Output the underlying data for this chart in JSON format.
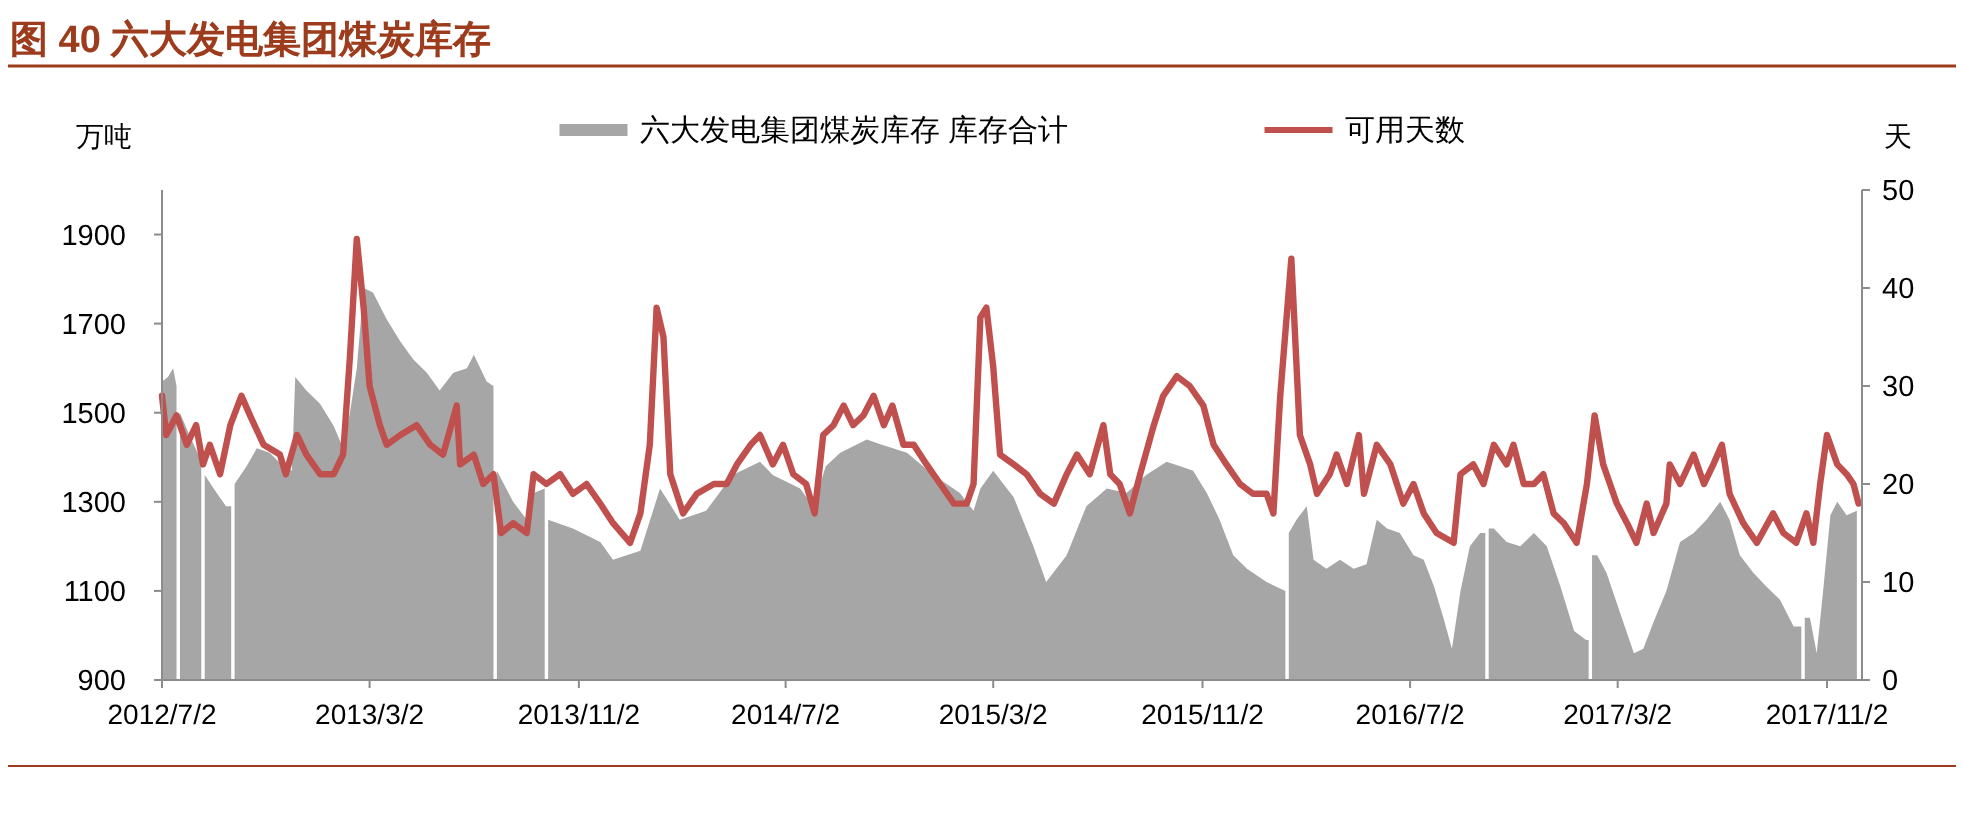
{
  "chart_data": {
    "type": "area",
    "title": "图 40 六大发电集团煤炭库存",
    "ylabel": "万吨",
    "y2label": "天",
    "legend": "top",
    "xlim": [
      "2012-07-02",
      "2017-12-13"
    ],
    "xticks": [
      {
        "value": "2012-07-02",
        "label": "2012/7/2"
      },
      {
        "value": "2013-03-02",
        "label": "2013/3/2"
      },
      {
        "value": "2013-11-02",
        "label": "2013/11/2"
      },
      {
        "value": "2014-07-02",
        "label": "2014/7/2"
      },
      {
        "value": "2015-03-02",
        "label": "2015/3/2"
      },
      {
        "value": "2015-11-02",
        "label": "2015/11/2"
      },
      {
        "value": "2016-07-02",
        "label": "2016/7/2"
      },
      {
        "value": "2017-03-02",
        "label": "2017/3/2"
      },
      {
        "value": "2017-11-02",
        "label": "2017/11/2"
      }
    ],
    "ylim": [
      900,
      2000
    ],
    "yticks": [
      900,
      1100,
      1300,
      1500,
      1700,
      1900
    ],
    "y2lim": [
      0,
      50
    ],
    "y2ticks": [
      0,
      10,
      20,
      30,
      40,
      50
    ],
    "series": [
      {
        "name": "六大发电集团煤炭库存 库存合计",
        "type": "area",
        "color": "#a6a6a6",
        "x": [
          "2012-07-02",
          "2012-07-09",
          "2012-07-15",
          "2012-07-19",
          "2012-07-21",
          "2012-07-23",
          "2012-08-03",
          "2012-08-15",
          "2012-08-17",
          "2012-08-19",
          "2012-08-21",
          "2012-09-04",
          "2012-09-15",
          "2012-09-21",
          "2012-09-23",
          "2012-09-25",
          "2012-10-09",
          "2012-10-21",
          "2012-11-05",
          "2012-11-21",
          "2012-12-01",
          "2012-12-05",
          "2012-12-18",
          "2013-01-03",
          "2013-01-19",
          "2013-01-30",
          "2013-02-07",
          "2013-02-15",
          "2013-02-23",
          "2013-03-06",
          "2013-03-22",
          "2013-04-07",
          "2013-04-22",
          "2013-05-08",
          "2013-05-23",
          "2013-06-08",
          "2013-06-24",
          "2013-07-02",
          "2013-07-17",
          "2013-07-25",
          "2013-07-27",
          "2013-07-29",
          "2013-08-17",
          "2013-09-02",
          "2013-09-10",
          "2013-09-23",
          "2013-09-25",
          "2013-09-27",
          "2013-10-26",
          "2013-11-27",
          "2013-12-12",
          "2013-12-28",
          "2014-01-13",
          "2014-02-05",
          "2014-02-28",
          "2014-03-31",
          "2014-05-01",
          "2014-06-02",
          "2014-06-17",
          "2014-07-19",
          "2014-08-03",
          "2014-08-18",
          "2014-09-04",
          "2014-10-05",
          "2014-10-20",
          "2014-11-21",
          "2014-12-22",
          "2015-01-22",
          "2015-02-07",
          "2015-02-15",
          "2015-03-02",
          "2015-03-26",
          "2015-04-18",
          "2015-05-03",
          "2015-05-27",
          "2015-06-19",
          "2015-07-13",
          "2015-08-05",
          "2015-08-28",
          "2015-09-21",
          "2015-10-07",
          "2015-10-22",
          "2015-11-07",
          "2015-11-22",
          "2015-12-08",
          "2015-12-24",
          "2016-01-16",
          "2016-02-07",
          "2016-02-09",
          "2016-02-11",
          "2016-02-20",
          "2016-03-03",
          "2016-03-11",
          "2016-03-26",
          "2016-04-11",
          "2016-04-27",
          "2016-05-12",
          "2016-05-24",
          "2016-06-05",
          "2016-06-20",
          "2016-07-06",
          "2016-07-18",
          "2016-07-30",
          "2016-08-10",
          "2016-08-20",
          "2016-08-30",
          "2016-09-10",
          "2016-09-22",
          "2016-09-28",
          "2016-09-30",
          "2016-10-02",
          "2016-10-08",
          "2016-10-23",
          "2016-11-08",
          "2016-11-24",
          "2016-12-09",
          "2016-12-25",
          "2017-01-10",
          "2017-01-24",
          "2017-01-27",
          "2017-01-29",
          "2017-01-31",
          "2017-02-06",
          "2017-02-17",
          "2017-03-05",
          "2017-03-21",
          "2017-04-01",
          "2017-04-13",
          "2017-04-28",
          "2017-05-14",
          "2017-05-30",
          "2017-06-14",
          "2017-06-30",
          "2017-07-11",
          "2017-07-23",
          "2017-08-08",
          "2017-08-23",
          "2017-09-08",
          "2017-09-24",
          "2017-10-03",
          "2017-10-05",
          "2017-10-07",
          "2017-10-13",
          "2017-10-21",
          "2017-10-29",
          "2017-11-06",
          "2017-11-14",
          "2017-11-25",
          "2017-12-07"
        ],
        "values": [
          1570,
          1580,
          1600,
          1560,
          null,
          1500,
          1450,
          1400,
          1400,
          null,
          1360,
          1320,
          1290,
          1290,
          null,
          1340,
          1380,
          1420,
          1410,
          1380,
          1370,
          1580,
          1550,
          1520,
          1470,
          1420,
          1500,
          1600,
          1780,
          1770,
          1710,
          1660,
          1620,
          1590,
          1550,
          1590,
          1600,
          1630,
          1570,
          1560,
          null,
          1370,
          1300,
          1260,
          1320,
          1330,
          null,
          1260,
          1240,
          1210,
          1170,
          1180,
          1190,
          1330,
          1260,
          1280,
          1360,
          1390,
          1360,
          1330,
          1290,
          1380,
          1410,
          1440,
          1430,
          1410,
          1360,
          1320,
          1280,
          1330,
          1370,
          1310,
          1200,
          1120,
          1180,
          1290,
          1330,
          1320,
          1360,
          1390,
          1380,
          1370,
          1320,
          1260,
          1180,
          1150,
          1120,
          1100,
          null,
          1230,
          1260,
          1290,
          1170,
          1150,
          1170,
          1150,
          1160,
          1260,
          1240,
          1230,
          1180,
          1170,
          1110,
          1040,
          970,
          1100,
          1200,
          1230,
          1230,
          null,
          1240,
          1240,
          1210,
          1200,
          1230,
          1200,
          1110,
          1010,
          990,
          990,
          null,
          1180,
          1180,
          1140,
          1050,
          960,
          970,
          1030,
          1100,
          1210,
          1230,
          1260,
          1300,
          1260,
          1180,
          1140,
          1110,
          1080,
          1020,
          1020,
          null,
          1040,
          1040,
          960,
          1110,
          1270,
          1300,
          1270,
          1280
        ]
      },
      {
        "name": "可用天数",
        "type": "line",
        "axis": "y2",
        "color": "#c0504d",
        "x": [
          "2012-07-02",
          "2012-07-07",
          "2012-07-19",
          "2012-07-31",
          "2012-08-11",
          "2012-08-19",
          "2012-08-27",
          "2012-09-08",
          "2012-09-20",
          "2012-10-03",
          "2012-10-13",
          "2012-10-29",
          "2012-11-17",
          "2012-11-24",
          "2012-12-07",
          "2012-12-18",
          "2013-01-03",
          "2013-01-19",
          "2013-01-30",
          "2013-02-07",
          "2013-02-15",
          "2013-02-23",
          "2013-03-02",
          "2013-03-14",
          "2013-03-22",
          "2013-04-07",
          "2013-04-26",
          "2013-05-12",
          "2013-05-27",
          "2013-06-12",
          "2013-06-16",
          "2013-07-02",
          "2013-07-13",
          "2013-07-25",
          "2013-08-03",
          "2013-08-17",
          "2013-09-02",
          "2013-09-10",
          "2013-09-25",
          "2013-10-11",
          "2013-10-26",
          "2013-11-11",
          "2013-11-27",
          "2013-12-12",
          "2014-01-01",
          "2014-01-13",
          "2014-01-24",
          "2014-02-01",
          "2014-02-09",
          "2014-02-17",
          "2014-03-04",
          "2014-03-20",
          "2014-04-09",
          "2014-04-24",
          "2014-05-06",
          "2014-05-22",
          "2014-06-02",
          "2014-06-17",
          "2014-06-29",
          "2014-07-11",
          "2014-07-26",
          "2014-08-05",
          "2014-08-15",
          "2014-08-27",
          "2014-09-08",
          "2014-09-19",
          "2014-10-01",
          "2014-10-13",
          "2014-10-25",
          "2014-11-04",
          "2014-11-17",
          "2014-11-29",
          "2014-12-14",
          "2014-12-30",
          "2015-01-15",
          "2015-01-30",
          "2015-02-07",
          "2015-02-15",
          "2015-02-22",
          "2015-03-02",
          "2015-03-10",
          "2015-03-26",
          "2015-04-10",
          "2015-04-26",
          "2015-05-12",
          "2015-05-27",
          "2015-06-08",
          "2015-06-23",
          "2015-07-09",
          "2015-07-17",
          "2015-07-28",
          "2015-08-09",
          "2015-08-21",
          "2015-09-06",
          "2015-09-17",
          "2015-10-03",
          "2015-10-18",
          "2015-11-03",
          "2015-11-15",
          "2015-11-30",
          "2015-12-16",
          "2015-12-31",
          "2016-01-16",
          "2016-01-24",
          "2016-02-01",
          "2016-02-14",
          "2016-02-24",
          "2016-03-07",
          "2016-03-15",
          "2016-03-30",
          "2016-04-07",
          "2016-04-19",
          "2016-05-03",
          "2016-05-09",
          "2016-05-24",
          "2016-06-09",
          "2016-06-24",
          "2016-07-06",
          "2016-07-18",
          "2016-08-02",
          "2016-08-22",
          "2016-08-30",
          "2016-09-14",
          "2016-09-26",
          "2016-10-08",
          "2016-10-23",
          "2016-10-31",
          "2016-11-12",
          "2016-11-24",
          "2016-12-05",
          "2016-12-17",
          "2016-12-29",
          "2017-01-13",
          "2017-01-25",
          "2017-02-03",
          "2017-02-13",
          "2017-03-01",
          "2017-03-13",
          "2017-03-24",
          "2017-04-05",
          "2017-04-13",
          "2017-04-28",
          "2017-05-02",
          "2017-05-14",
          "2017-05-30",
          "2017-06-11",
          "2017-06-22",
          "2017-07-02",
          "2017-07-11",
          "2017-07-27",
          "2017-08-12",
          "2017-08-31",
          "2017-09-12",
          "2017-09-27",
          "2017-10-09",
          "2017-10-17",
          "2017-10-25",
          "2017-11-02",
          "2017-11-14",
          "2017-11-25",
          "2017-12-03",
          "2017-12-09"
        ],
        "values": [
          29,
          25,
          27,
          24,
          26,
          22,
          24,
          21,
          26,
          29,
          27,
          24,
          23,
          21,
          25,
          23,
          21,
          21,
          23,
          33,
          45,
          38,
          30,
          26,
          24,
          25,
          26,
          24,
          23,
          28,
          22,
          23,
          20,
          21,
          15,
          16,
          15,
          21,
          20,
          21,
          19,
          20,
          18,
          16,
          14,
          17,
          24,
          38,
          35,
          21,
          17,
          19,
          20,
          20,
          22,
          24,
          25,
          22,
          24,
          21,
          20,
          17,
          25,
          26,
          28,
          26,
          27,
          29,
          26,
          28,
          24,
          24,
          22,
          20,
          18,
          18,
          20,
          37,
          38,
          32,
          23,
          22,
          21,
          19,
          18,
          21,
          23,
          21,
          26,
          21,
          20,
          17,
          21,
          26,
          29,
          31,
          30,
          28,
          24,
          22,
          20,
          19,
          19,
          17,
          29,
          43,
          25,
          22,
          19,
          21,
          23,
          20,
          25,
          19,
          24,
          22,
          18,
          20,
          17,
          15,
          14,
          21,
          22,
          20,
          24,
          22,
          24,
          20,
          20,
          21,
          17,
          16,
          14,
          20,
          27,
          22,
          18,
          16,
          14,
          18,
          15,
          18,
          22,
          20,
          23,
          20,
          22,
          24,
          19,
          16,
          14,
          17,
          15,
          14,
          17,
          14,
          20,
          25,
          22,
          21,
          20,
          18
        ]
      }
    ]
  }
}
